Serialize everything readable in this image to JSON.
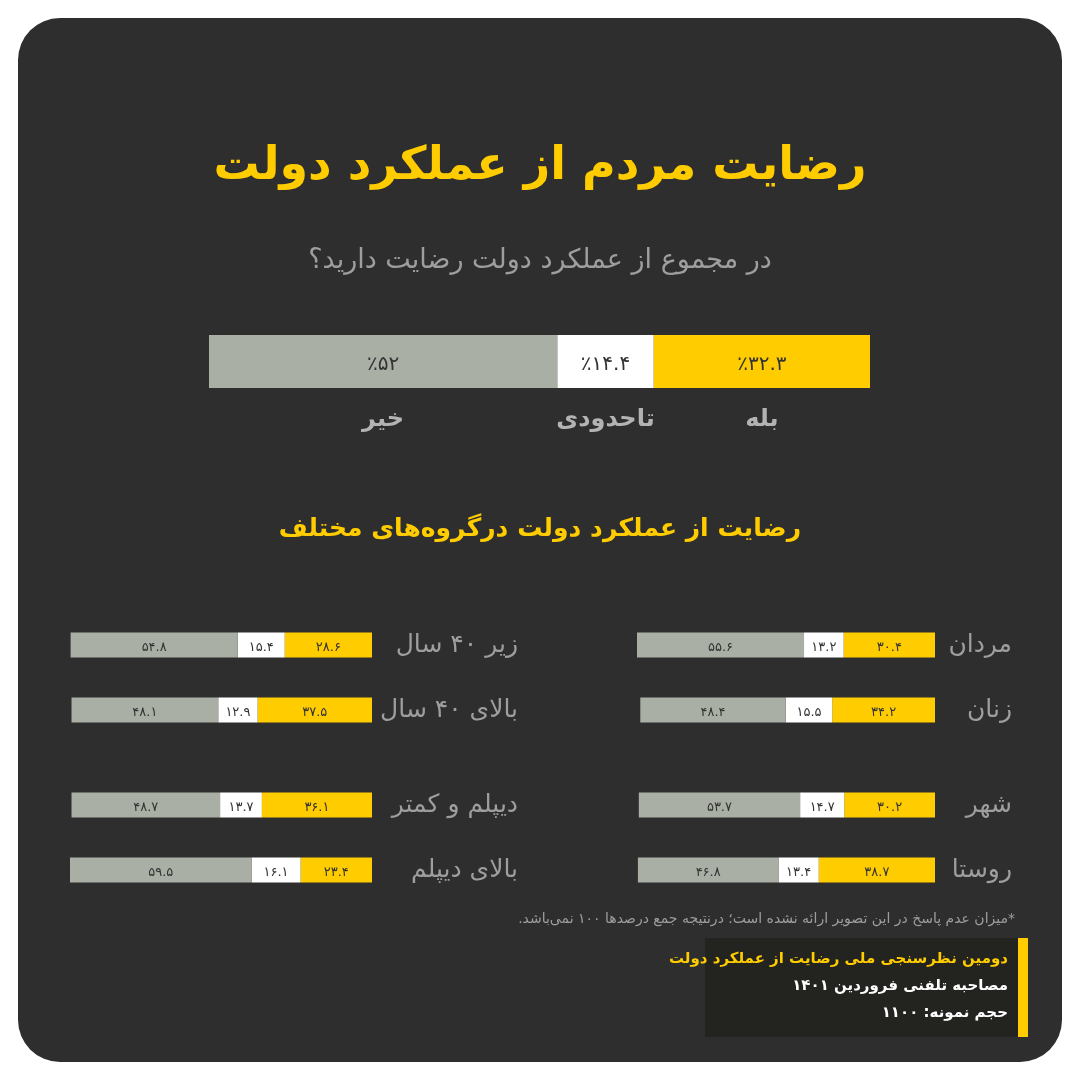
{
  "chart_data": [
    {
      "type": "bar",
      "orientation": "horizontal",
      "stacked": true,
      "title": "رضایت مردم از عملکرد دولت",
      "subtitle": "در مجموع از عملکرد دولت رضایت دارید؟",
      "categories": [
        null
      ],
      "series": [
        {
          "name": "بله",
          "color": "#ffcc00",
          "values": [
            32.3
          ],
          "value_labels": [
            "٪۳۲.۳"
          ]
        },
        {
          "name": "تاحدودی",
          "color": "#ffffff",
          "values": [
            14.4
          ],
          "value_labels": [
            "٪۱۴.۴"
          ]
        },
        {
          "name": "خیر",
          "color": "#aaafa5",
          "values": [
            52
          ],
          "value_labels": [
            "٪۵۲"
          ]
        }
      ]
    },
    {
      "type": "bar",
      "orientation": "horizontal",
      "stacked": true,
      "title": "رضایت از عملکرد دولت درگروه‌های مختلف",
      "categories": [
        "مردان",
        "زنان",
        "شهر",
        "روستا"
      ],
      "series": [
        {
          "color": "#ffcc00",
          "values": [
            30.4,
            34.2,
            30.2,
            38.7
          ],
          "value_labels": [
            "۳۰.۴",
            "۳۴.۲",
            "۳۰.۲",
            "۳۸.۷"
          ]
        },
        {
          "color": "#ffffff",
          "values": [
            13.2,
            15.5,
            14.7,
            13.4
          ],
          "value_labels": [
            "۱۳.۲",
            "۱۵.۵",
            "۱۴.۷",
            "۱۳.۴"
          ]
        },
        {
          "color": "#aaafa5",
          "values": [
            55.6,
            48.4,
            53.7,
            46.8
          ],
          "value_labels": [
            "۵۵.۶",
            "۴۸.۴",
            "۵۳.۷",
            "۴۶.۸"
          ]
        }
      ],
      "annotations": [
        "*میزان عدم پاسخ در این تصویر ارائه نشده است؛ درنتیجه جمع درصدها ۱۰۰ نمی‌باشد.",
        "دومین نظرسنجی ملی رضایت از عملکرد دولت",
        "مصاحبه تلفنی فروردین ۱۴۰۱",
        "حجم نمونه: ۱۱۰۰"
      ]
    },
    {
      "type": "bar",
      "orientation": "horizontal",
      "stacked": true,
      "categories": [
        "زیر ۴۰ سال",
        "بالای ۴۰ سال",
        "دیپلم و کمتر",
        "بالای دیپلم"
      ],
      "series": [
        {
          "color": "#ffcc00",
          "values": [
            28.6,
            37.5,
            36.1,
            23.4
          ],
          "value_labels": [
            "۲۸.۶",
            "۳۷.۵",
            "۳۶.۱",
            "۲۳.۴"
          ]
        },
        {
          "color": "#ffffff",
          "values": [
            15.4,
            12.9,
            13.7,
            16.1
          ],
          "value_labels": [
            "۱۵.۴",
            "۱۲.۹",
            "۱۳.۷",
            "۱۶.۱"
          ]
        },
        {
          "color": "#aaafa5",
          "values": [
            54.8,
            48.1,
            48.7,
            59.5
          ],
          "value_labels": [
            "۵۴.۸",
            "۴۸.۱",
            "۴۸.۷",
            "۵۹.۵"
          ]
        }
      ]
    }
  ]
}
